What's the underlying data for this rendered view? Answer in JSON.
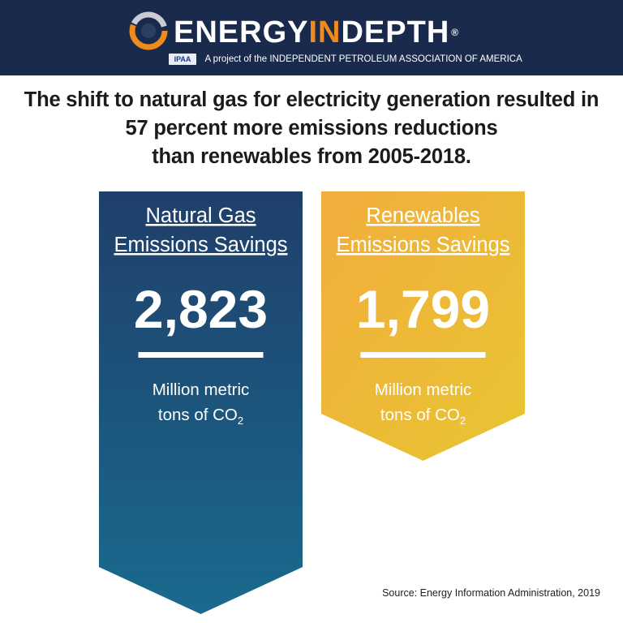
{
  "header": {
    "brand_part1": "ENERGY",
    "brand_part2": "IN",
    "brand_part3": "DEPTH",
    "trademark": "®",
    "ipaa_logo_text": "IPAA",
    "tagline": "A project of the INDEPENDENT PETROLEUM ASSOCIATION OF AMERICA",
    "colors": {
      "navy": "#1a2a4d",
      "orange": "#ef8a1e"
    }
  },
  "headline": {
    "line1": "The shift to natural gas for electricity generation resulted in",
    "line2": "57 percent more emissions reductions",
    "line3": "than renewables from 2005-2018."
  },
  "chart_data": {
    "type": "bar",
    "categories": [
      "Natural Gas Emissions Savings",
      "Renewables Emissions Savings"
    ],
    "values": [
      2823,
      1799
    ],
    "value_labels": [
      "2,823",
      "1,799"
    ],
    "category_lines": [
      [
        "Natural Gas",
        "Emissions Savings"
      ],
      [
        "Renewables",
        "Emissions Savings"
      ]
    ],
    "unit_line1": "Million metric",
    "unit_line2": "tons of CO",
    "unit_subscript": "2",
    "colors": [
      "#1d5f87",
      "#f2a93a"
    ],
    "title": "",
    "xlabel": "",
    "ylabel": ""
  },
  "footer": {
    "source": "Source: Energy Information Administration, 2019"
  }
}
